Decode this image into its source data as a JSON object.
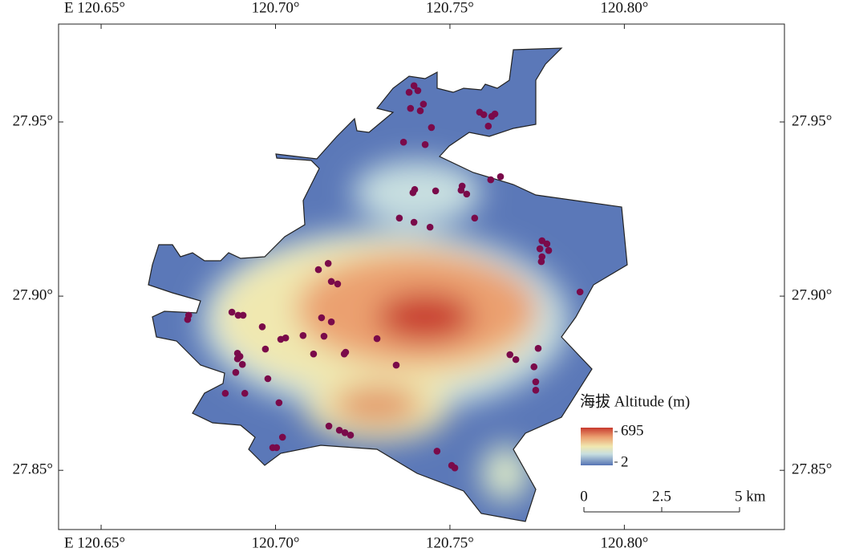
{
  "map": {
    "xlim": [
      120.6378,
      120.8459
    ],
    "ylim": [
      27.833,
      27.9781
    ],
    "xticks": [
      {
        "value": 120.65,
        "label": "E 120.65°"
      },
      {
        "value": 120.7,
        "label": "120.70°"
      },
      {
        "value": 120.75,
        "label": "120.75°"
      },
      {
        "value": 120.8,
        "label": "120.80°"
      }
    ],
    "yticks": [
      {
        "value": 27.85,
        "label": "27.85°"
      },
      {
        "value": 27.9,
        "label": "27.90°"
      },
      {
        "value": 27.95,
        "label": "27.95°"
      }
    ],
    "points": {
      "color": "#7a0a4a",
      "lon": [
        120.7397,
        120.7383,
        120.7408,
        120.7424,
        120.7387,
        120.7415,
        120.7447,
        120.7367,
        120.7429,
        120.7585,
        120.7597,
        120.7629,
        120.762,
        120.761,
        120.7399,
        120.7394,
        120.7459,
        120.7535,
        120.7532,
        120.7548,
        120.7617,
        120.7645,
        120.7355,
        120.7397,
        120.7443,
        120.7571,
        120.7764,
        120.7778,
        120.7758,
        120.7764,
        120.7783,
        120.7762,
        120.7873,
        120.7123,
        120.7151,
        120.716,
        120.7178,
        120.6875,
        120.6893,
        120.6907,
        120.6751,
        120.6748,
        120.6962,
        120.7132,
        120.716,
        120.7015,
        120.7029,
        120.7079,
        120.7139,
        120.7291,
        120.7201,
        120.7197,
        120.7109,
        120.6971,
        120.6891,
        120.6898,
        120.6891,
        120.6905,
        120.7346,
        120.7672,
        120.7689,
        120.7753,
        120.7741,
        120.7746,
        120.7746,
        120.6886,
        120.6978,
        120.6856,
        120.6912,
        120.701,
        120.7153,
        120.7183,
        120.7199,
        120.7215,
        120.702,
        120.7003,
        120.6992,
        120.7463,
        120.7505,
        120.7514
      ],
      "lat": [
        27.9604,
        27.9585,
        27.959,
        27.9551,
        27.9539,
        27.9532,
        27.9484,
        27.9442,
        27.9435,
        27.9528,
        27.9521,
        27.9523,
        27.9516,
        27.9488,
        27.9306,
        27.9297,
        27.9302,
        27.9316,
        27.9304,
        27.9293,
        27.9334,
        27.9343,
        27.9224,
        27.9212,
        27.9198,
        27.9224,
        27.9159,
        27.915,
        27.9136,
        27.9113,
        27.9131,
        27.9099,
        27.9012,
        27.9076,
        27.9094,
        27.9042,
        27.9035,
        27.8954,
        27.8945,
        27.8945,
        27.8945,
        27.8933,
        27.8912,
        27.8938,
        27.8926,
        27.8876,
        27.888,
        27.8887,
        27.8885,
        27.8878,
        27.8839,
        27.8834,
        27.8834,
        27.8848,
        27.8836,
        27.8827,
        27.882,
        27.8804,
        27.8802,
        27.8832,
        27.8818,
        27.885,
        27.8797,
        27.8754,
        27.873,
        27.8781,
        27.8763,
        27.8721,
        27.8721,
        27.8694,
        27.8627,
        27.8615,
        27.8608,
        27.8601,
        27.8595,
        27.8565,
        27.8565,
        27.8555,
        27.8514,
        27.8507
      ]
    },
    "legend": {
      "title": "海拔 Altitude (m)",
      "max": 695,
      "min": 2
    },
    "scale_bar": {
      "ticks": [
        0,
        2.5,
        {
          "value": 5,
          "label": "5 km"
        }
      ]
    }
  }
}
